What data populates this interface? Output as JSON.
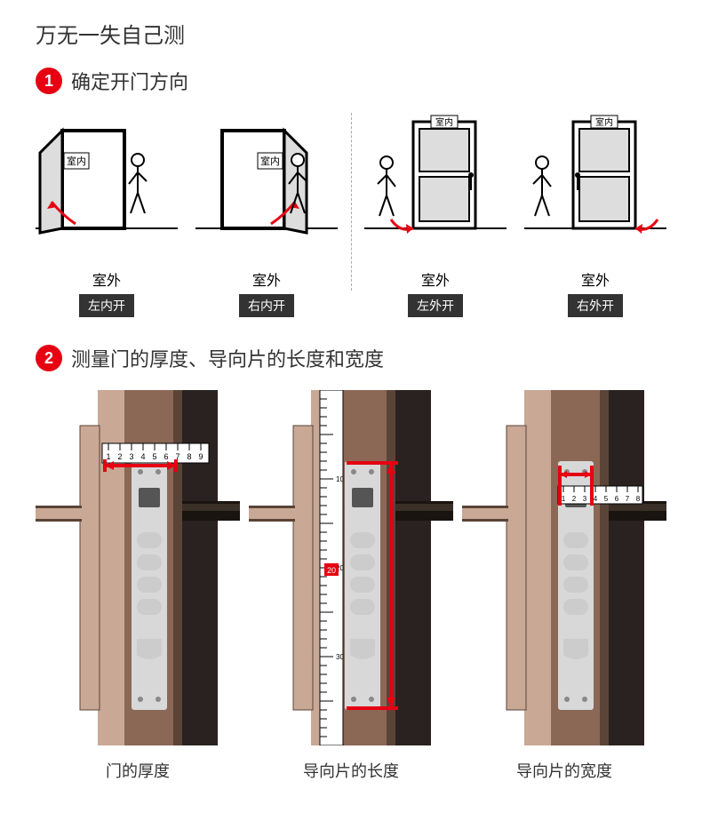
{
  "main_title": "万无一失自己测",
  "accent_color": "#e60012",
  "text_color": "#333333",
  "tag_bg": "#333333",
  "step1": {
    "num": "1",
    "title": "确定开门方向",
    "indoor_label": "室内",
    "outdoor_label": "室外",
    "doors": [
      {
        "tag": "左内开",
        "hinge": "right",
        "swing": "in",
        "figure_side": "right"
      },
      {
        "tag": "右内开",
        "hinge": "left",
        "swing": "in",
        "figure_side": "right"
      },
      {
        "tag": "左外开",
        "hinge": "left",
        "swing": "out",
        "figure_side": "left"
      },
      {
        "tag": "右外开",
        "hinge": "right",
        "swing": "out",
        "figure_side": "left"
      }
    ]
  },
  "step2": {
    "num": "2",
    "title": "测量门的厚度、导向片的长度和宽度",
    "lock_colors": {
      "body_light": "#c9a896",
      "body_dark": "#8b6856",
      "body_shadow": "#5a4438",
      "panel": "#2a2220",
      "plate": "#d8d8d8",
      "ruler_bg": "#ffffff",
      "marker": "#e60012"
    },
    "items": [
      {
        "label": "门的厚度",
        "ruler": "horizontal_top",
        "marker_type": "width_top"
      },
      {
        "label": "导向片的长度",
        "ruler": "vertical_full",
        "marker_type": "height"
      },
      {
        "label": "导向片的宽度",
        "ruler": "horizontal_small",
        "marker_type": "plate_width"
      }
    ]
  }
}
